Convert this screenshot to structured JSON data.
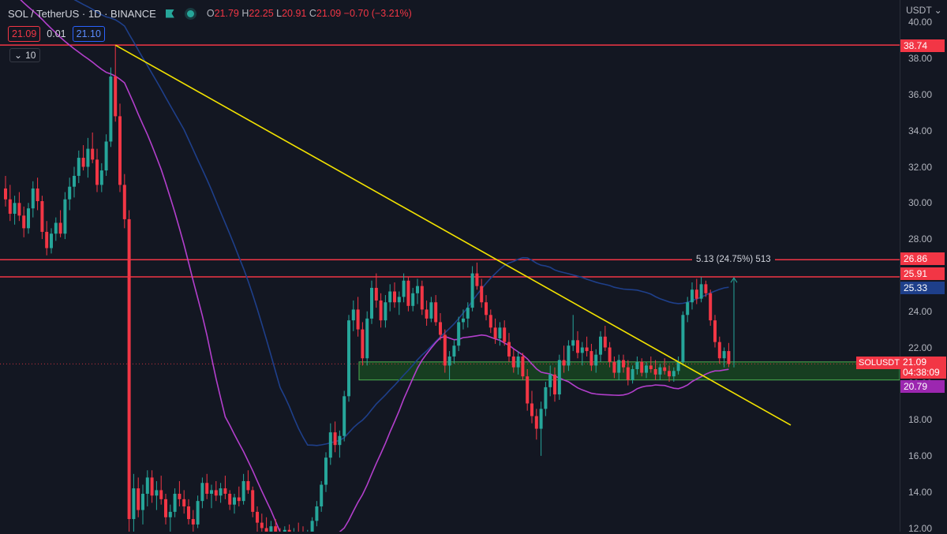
{
  "header": {
    "symbol": "SOL / TetherUS · 1D · BINANCE",
    "ohlc": {
      "o_label": "O",
      "o": "21.79",
      "h_label": "H",
      "h": "22.25",
      "l_label": "L",
      "l": "20.91",
      "c_label": "C",
      "c": "21.09",
      "change": "−0.70 (−3.21%)"
    },
    "bid": "21.09",
    "spread": "0.01",
    "ask": "21.10",
    "indicators_count": "10",
    "currency": "USDT"
  },
  "axis": {
    "ticks": [
      "40.00",
      "38.00",
      "36.00",
      "34.00",
      "32.00",
      "30.00",
      "28.00",
      "26.00",
      "24.00",
      "22.00",
      "20.00",
      "18.00",
      "16.00",
      "14.00",
      "12.00"
    ]
  },
  "price_labels": {
    "resistance_top": "38.74",
    "resistance_mid": "26.86",
    "resistance_low": "25.91",
    "ma_blue": "25.33",
    "ma_purple": "20.79",
    "last": "21.09",
    "countdown": "04:38:09",
    "symbol_tag": "SOLUSDT"
  },
  "measure": {
    "text": "5.13 (24.75%) 513"
  },
  "colors": {
    "up": "#26a69a",
    "down": "#f23645",
    "ma_blue": "#1e3f8a",
    "ma_purple": "#b33fcc",
    "trendline": "#f2e200",
    "hline": "#f23645",
    "zone": "#1b5e20",
    "zone_border": "#4caf50"
  },
  "chart_data": {
    "type": "candlestick",
    "price_range": [
      12,
      40
    ],
    "horizontal_levels": [
      38.74,
      26.86,
      25.91
    ],
    "support_zone": [
      20.2,
      21.2
    ],
    "trendline": {
      "from_price": 38.74,
      "to_price": 17.7
    },
    "moving_averages": [
      {
        "color": "#1e3f8a",
        "last": 25.33
      },
      {
        "color": "#b33fcc",
        "last": 20.79
      }
    ],
    "candles": [
      [
        30.8,
        31.5,
        29.8,
        30.2
      ],
      [
        30.2,
        31.0,
        29.0,
        29.4
      ],
      [
        29.4,
        30.4,
        28.8,
        30.0
      ],
      [
        30.0,
        30.6,
        29.0,
        29.3
      ],
      [
        29.3,
        29.8,
        28.1,
        28.6
      ],
      [
        28.6,
        30.0,
        28.3,
        29.7
      ],
      [
        29.7,
        31.2,
        29.2,
        30.8
      ],
      [
        30.8,
        31.4,
        29.6,
        30.1
      ],
      [
        30.1,
        30.4,
        28.0,
        28.4
      ],
      [
        28.4,
        29.0,
        27.1,
        27.5
      ],
      [
        27.5,
        28.6,
        27.2,
        28.3
      ],
      [
        28.3,
        29.2,
        27.9,
        28.9
      ],
      [
        28.9,
        29.6,
        28.1,
        28.3
      ],
      [
        28.3,
        30.6,
        28.0,
        30.2
      ],
      [
        30.2,
        31.4,
        29.6,
        30.9
      ],
      [
        30.9,
        32.0,
        30.3,
        31.5
      ],
      [
        31.5,
        32.9,
        31.1,
        32.5
      ],
      [
        32.5,
        33.2,
        31.8,
        32.0
      ],
      [
        32.0,
        33.6,
        31.4,
        33.0
      ],
      [
        33.0,
        33.9,
        32.2,
        32.4
      ],
      [
        32.4,
        33.0,
        30.6,
        31.0
      ],
      [
        31.0,
        32.2,
        30.6,
        31.8
      ],
      [
        31.8,
        33.8,
        31.5,
        33.4
      ],
      [
        33.4,
        37.5,
        33.1,
        37.0
      ],
      [
        37.0,
        38.7,
        34.5,
        34.8
      ],
      [
        34.8,
        35.5,
        30.6,
        31.0
      ],
      [
        31.0,
        31.6,
        28.6,
        29.1
      ],
      [
        29.1,
        29.6,
        11.0,
        12.5
      ],
      [
        12.5,
        15.0,
        11.8,
        14.2
      ],
      [
        14.2,
        14.8,
        12.6,
        13.0
      ],
      [
        13.0,
        14.4,
        12.2,
        13.9
      ],
      [
        13.9,
        15.2,
        13.2,
        14.8
      ],
      [
        14.8,
        15.2,
        13.4,
        13.8
      ],
      [
        13.8,
        14.6,
        13.0,
        14.1
      ],
      [
        14.1,
        14.9,
        13.3,
        13.6
      ],
      [
        13.6,
        13.9,
        12.2,
        12.6
      ],
      [
        12.6,
        13.3,
        11.8,
        12.9
      ],
      [
        12.9,
        14.2,
        12.6,
        13.9
      ],
      [
        13.9,
        14.6,
        13.2,
        13.6
      ],
      [
        13.6,
        14.1,
        12.8,
        13.2
      ],
      [
        13.2,
        13.6,
        12.2,
        12.5
      ],
      [
        12.5,
        13.0,
        11.6,
        12.2
      ],
      [
        12.2,
        13.8,
        12.0,
        13.5
      ],
      [
        13.5,
        14.8,
        13.1,
        14.5
      ],
      [
        14.5,
        15.0,
        13.6,
        13.9
      ],
      [
        13.9,
        14.4,
        13.1,
        14.1
      ],
      [
        14.1,
        14.6,
        13.5,
        13.8
      ],
      [
        13.8,
        14.5,
        13.4,
        14.2
      ],
      [
        14.2,
        14.9,
        13.6,
        13.9
      ],
      [
        13.9,
        14.1,
        13.0,
        13.3
      ],
      [
        13.3,
        13.9,
        12.8,
        13.7
      ],
      [
        13.7,
        14.3,
        13.2,
        13.5
      ],
      [
        13.5,
        15.0,
        13.3,
        14.6
      ],
      [
        14.6,
        15.2,
        13.9,
        14.1
      ],
      [
        14.1,
        14.3,
        12.6,
        12.9
      ],
      [
        12.9,
        13.2,
        11.8,
        12.3
      ],
      [
        12.3,
        12.8,
        11.5,
        12.0
      ],
      [
        12.0,
        12.6,
        11.4,
        11.8
      ],
      [
        11.8,
        12.4,
        11.2,
        12.1
      ],
      [
        12.1,
        12.5,
        11.5,
        11.7
      ],
      [
        11.7,
        12.0,
        11.0,
        11.4
      ],
      [
        11.4,
        12.1,
        11.2,
        11.9
      ],
      [
        11.9,
        12.2,
        11.3,
        11.5
      ],
      [
        11.5,
        12.0,
        11.1,
        11.8
      ],
      [
        11.8,
        12.3,
        11.2,
        11.6
      ],
      [
        11.6,
        12.1,
        11.0,
        11.3
      ],
      [
        11.3,
        11.9,
        11.0,
        11.7
      ],
      [
        11.7,
        12.6,
        11.5,
        12.4
      ],
      [
        12.4,
        13.5,
        12.1,
        13.2
      ],
      [
        13.2,
        14.6,
        12.9,
        14.4
      ],
      [
        14.4,
        16.2,
        14.0,
        15.9
      ],
      [
        15.9,
        17.8,
        15.5,
        17.3
      ],
      [
        17.3,
        17.9,
        16.2,
        16.6
      ],
      [
        16.6,
        17.4,
        15.9,
        17.1
      ],
      [
        17.1,
        19.6,
        16.8,
        19.3
      ],
      [
        19.3,
        23.8,
        19.0,
        23.5
      ],
      [
        23.5,
        24.6,
        22.9,
        24.1
      ],
      [
        24.1,
        24.8,
        22.6,
        23.0
      ],
      [
        23.0,
        23.4,
        21.0,
        21.4
      ],
      [
        21.4,
        24.0,
        21.0,
        23.6
      ],
      [
        23.6,
        25.7,
        23.3,
        25.3
      ],
      [
        25.3,
        26.1,
        24.2,
        24.6
      ],
      [
        24.6,
        25.0,
        23.1,
        23.5
      ],
      [
        23.5,
        24.9,
        23.1,
        24.5
      ],
      [
        24.5,
        25.5,
        24.0,
        25.1
      ],
      [
        25.1,
        25.6,
        24.2,
        24.5
      ],
      [
        24.5,
        25.1,
        23.8,
        24.8
      ],
      [
        24.8,
        26.1,
        24.5,
        25.7
      ],
      [
        25.7,
        25.9,
        24.0,
        24.3
      ],
      [
        24.3,
        25.3,
        24.0,
        25.0
      ],
      [
        25.0,
        25.8,
        24.4,
        25.4
      ],
      [
        25.4,
        25.7,
        23.8,
        24.1
      ],
      [
        24.1,
        24.6,
        23.2,
        23.6
      ],
      [
        23.6,
        24.8,
        23.4,
        24.5
      ],
      [
        24.5,
        24.9,
        23.2,
        23.4
      ],
      [
        23.4,
        23.9,
        22.4,
        22.7
      ],
      [
        22.7,
        23.0,
        20.6,
        21.0
      ],
      [
        21.0,
        21.8,
        20.2,
        21.5
      ],
      [
        21.5,
        22.4,
        21.1,
        22.1
      ],
      [
        22.1,
        23.7,
        21.8,
        23.4
      ],
      [
        23.4,
        24.1,
        23.0,
        23.6
      ],
      [
        23.6,
        24.5,
        23.1,
        24.2
      ],
      [
        24.2,
        26.5,
        24.0,
        26.1
      ],
      [
        26.1,
        26.7,
        25.2,
        25.4
      ],
      [
        25.4,
        25.8,
        24.2,
        24.5
      ],
      [
        24.5,
        24.9,
        23.5,
        23.8
      ],
      [
        23.8,
        24.1,
        22.8,
        23.1
      ],
      [
        23.1,
        23.6,
        22.2,
        22.5
      ],
      [
        22.5,
        23.4,
        22.1,
        23.1
      ],
      [
        23.1,
        23.5,
        22.1,
        22.3
      ],
      [
        22.3,
        22.8,
        21.2,
        21.5
      ],
      [
        21.5,
        21.9,
        20.6,
        20.9
      ],
      [
        20.9,
        21.8,
        20.5,
        21.5
      ],
      [
        21.5,
        21.7,
        20.2,
        20.4
      ],
      [
        20.4,
        20.8,
        18.5,
        18.9
      ],
      [
        18.9,
        19.6,
        17.8,
        18.2
      ],
      [
        18.2,
        18.6,
        16.9,
        17.5
      ],
      [
        17.5,
        19.0,
        16.0,
        18.6
      ],
      [
        18.6,
        20.1,
        18.2,
        19.8
      ],
      [
        19.8,
        21.0,
        19.3,
        20.5
      ],
      [
        20.5,
        20.9,
        19.0,
        19.4
      ],
      [
        19.4,
        21.6,
        19.1,
        21.3
      ],
      [
        21.3,
        22.1,
        20.6,
        21.0
      ],
      [
        21.0,
        22.4,
        20.7,
        22.1
      ],
      [
        22.1,
        23.8,
        21.8,
        22.4
      ],
      [
        22.4,
        22.9,
        21.4,
        21.7
      ],
      [
        21.7,
        22.3,
        21.0,
        22.0
      ],
      [
        22.0,
        22.6,
        21.5,
        21.8
      ],
      [
        21.8,
        22.2,
        20.7,
        21.0
      ],
      [
        21.0,
        21.9,
        20.6,
        21.6
      ],
      [
        21.6,
        22.9,
        21.2,
        22.6
      ],
      [
        22.6,
        23.2,
        21.8,
        22.0
      ],
      [
        22.0,
        22.3,
        20.9,
        21.2
      ],
      [
        21.2,
        21.5,
        20.3,
        20.6
      ],
      [
        20.6,
        21.6,
        20.2,
        21.3
      ],
      [
        21.3,
        21.6,
        20.6,
        20.9
      ],
      [
        20.9,
        21.3,
        19.9,
        20.2
      ],
      [
        20.2,
        21.0,
        20.0,
        20.8
      ],
      [
        20.8,
        21.5,
        20.5,
        21.2
      ],
      [
        21.2,
        21.4,
        20.4,
        20.6
      ],
      [
        20.6,
        21.2,
        20.3,
        21.0
      ],
      [
        21.0,
        21.5,
        20.6,
        20.8
      ],
      [
        20.8,
        21.3,
        20.2,
        20.5
      ],
      [
        20.5,
        21.1,
        20.2,
        20.9
      ],
      [
        20.9,
        21.4,
        20.5,
        20.7
      ],
      [
        20.7,
        21.0,
        20.1,
        20.4
      ],
      [
        20.4,
        20.9,
        20.1,
        20.7
      ],
      [
        20.7,
        21.5,
        20.5,
        21.2
      ],
      [
        21.2,
        24.0,
        21.0,
        23.8
      ],
      [
        23.8,
        24.8,
        23.4,
        24.5
      ],
      [
        24.5,
        25.6,
        24.1,
        25.2
      ],
      [
        25.2,
        25.8,
        24.4,
        24.7
      ],
      [
        24.7,
        25.9,
        24.5,
        25.5
      ],
      [
        25.5,
        25.7,
        24.8,
        25.0
      ],
      [
        25.0,
        25.2,
        23.2,
        23.5
      ],
      [
        23.5,
        23.8,
        22.0,
        22.3
      ],
      [
        22.3,
        22.6,
        21.1,
        21.4
      ],
      [
        21.4,
        22.0,
        20.9,
        21.8
      ],
      [
        21.8,
        22.25,
        20.91,
        21.09
      ]
    ]
  }
}
